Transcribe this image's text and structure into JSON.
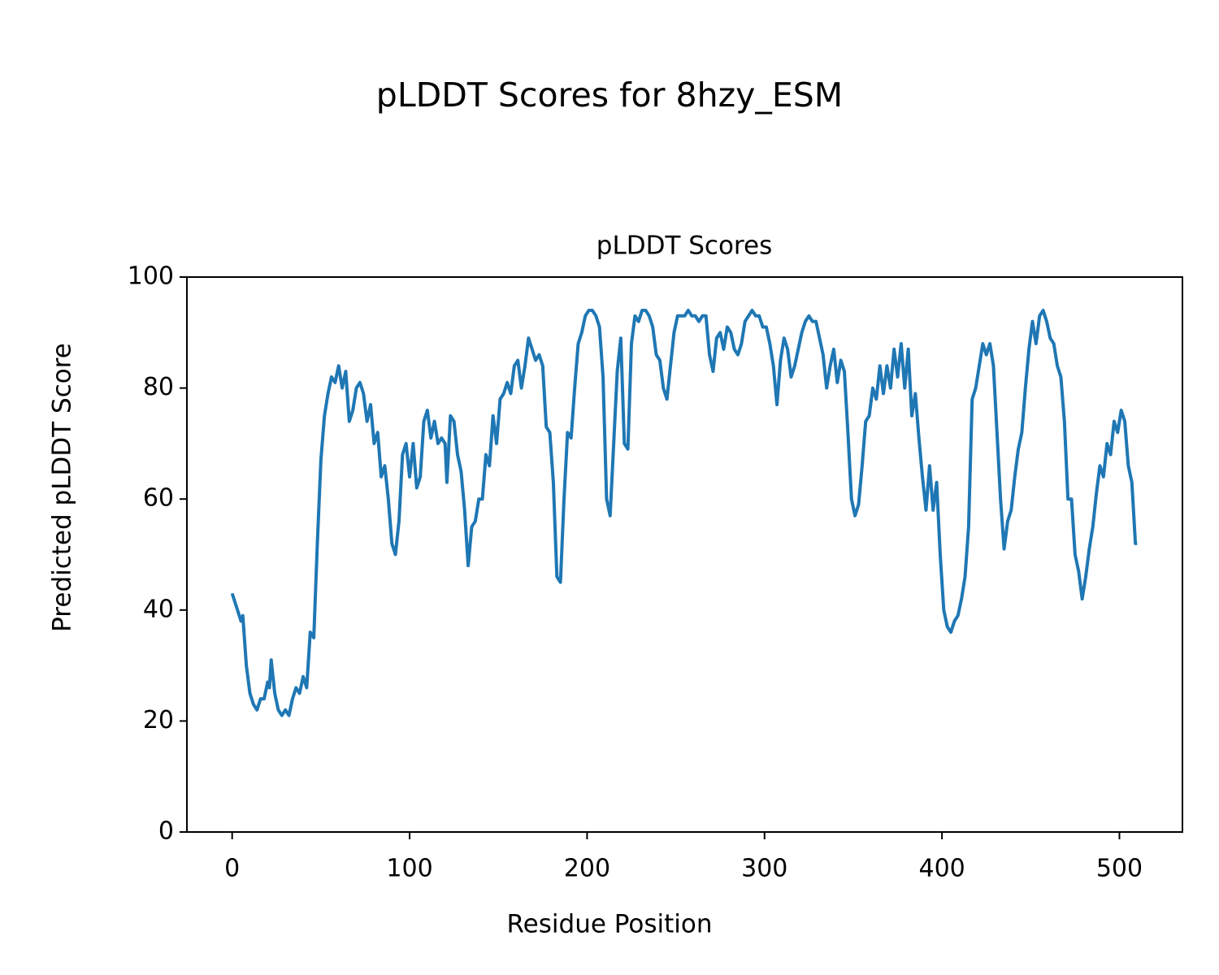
{
  "chart_data": {
    "type": "line",
    "suptitle": "pLDDT Scores for 8hzy_ESM",
    "title": "pLDDT Scores",
    "x_label": "Residue Position",
    "y_label": "Predicted pLDDT Score",
    "xlim": [
      -25.5,
      535.5
    ],
    "xticks": [
      0,
      100,
      200,
      300,
      400,
      500
    ],
    "ylim": [
      0,
      100
    ],
    "yticks": [
      0,
      20,
      40,
      60,
      80,
      100
    ],
    "x": [
      0,
      3,
      5,
      6,
      8,
      10,
      12,
      14,
      16,
      18,
      20,
      21,
      22,
      24,
      26,
      28,
      30,
      32,
      34,
      36,
      38,
      40,
      42,
      44,
      46,
      48,
      50,
      52,
      54,
      56,
      58,
      60,
      62,
      64,
      66,
      68,
      70,
      72,
      74,
      76,
      78,
      80,
      82,
      84,
      86,
      88,
      90,
      92,
      94,
      96,
      98,
      100,
      102,
      104,
      106,
      108,
      110,
      112,
      114,
      116,
      118,
      120,
      121,
      123,
      125,
      127,
      129,
      131,
      133,
      135,
      137,
      139,
      141,
      143,
      145,
      147,
      149,
      151,
      153,
      155,
      157,
      159,
      161,
      163,
      165,
      167,
      169,
      171,
      173,
      175,
      177,
      179,
      181,
      183,
      185,
      187,
      189,
      191,
      193,
      195,
      197,
      199,
      201,
      203,
      205,
      207,
      209,
      211,
      213,
      215,
      217,
      219,
      221,
      223,
      225,
      227,
      229,
      231,
      233,
      235,
      237,
      239,
      241,
      243,
      245,
      247,
      249,
      251,
      253,
      255,
      257,
      259,
      261,
      263,
      265,
      267,
      269,
      271,
      273,
      275,
      277,
      279,
      281,
      283,
      285,
      287,
      289,
      291,
      293,
      295,
      297,
      299,
      301,
      303,
      305,
      307,
      309,
      311,
      313,
      315,
      317,
      319,
      321,
      323,
      325,
      327,
      329,
      331,
      333,
      335,
      337,
      339,
      341,
      343,
      345,
      347,
      349,
      351,
      353,
      355,
      357,
      359,
      361,
      363,
      365,
      367,
      369,
      371,
      373,
      375,
      377,
      379,
      381,
      383,
      385,
      387,
      389,
      391,
      393,
      395,
      397,
      399,
      401,
      403,
      405,
      407,
      409,
      411,
      413,
      415,
      417,
      419,
      421,
      423,
      425,
      427,
      429,
      431,
      433,
      435,
      437,
      439,
      441,
      443,
      445,
      447,
      449,
      451,
      453,
      455,
      457,
      459,
      461,
      463,
      465,
      467,
      469,
      471,
      473,
      475,
      477,
      479,
      481,
      483,
      485,
      487,
      489,
      491,
      493,
      495,
      497,
      499,
      501,
      503,
      505,
      507,
      509,
      510
    ],
    "series": [
      {
        "name": "pLDDT",
        "color": "#1f77b4",
        "values": [
          43,
          40,
          38,
          39,
          30,
          25,
          23,
          22,
          24,
          24,
          27,
          26,
          31,
          25,
          22,
          21,
          22,
          21,
          24,
          26,
          25,
          28,
          26,
          36,
          35,
          52,
          67,
          75,
          79,
          82,
          81,
          84,
          80,
          83,
          74,
          76,
          80,
          81,
          79,
          74,
          77,
          70,
          72,
          64,
          66,
          60,
          52,
          50,
          56,
          68,
          70,
          64,
          70,
          62,
          64,
          74,
          76,
          71,
          74,
          70,
          71,
          70,
          63,
          75,
          74,
          68,
          65,
          58,
          48,
          55,
          56,
          60,
          60,
          68,
          66,
          75,
          70,
          78,
          79,
          81,
          79,
          84,
          85,
          80,
          84,
          89,
          87,
          85,
          86,
          84,
          73,
          72,
          63,
          46,
          45,
          60,
          72,
          71,
          80,
          88,
          90,
          93,
          94,
          94,
          93,
          91,
          82,
          60,
          57,
          70,
          83,
          89,
          70,
          69,
          88,
          93,
          92,
          94,
          94,
          93,
          91,
          86,
          85,
          80,
          78,
          84,
          90,
          93,
          93,
          93,
          94,
          93,
          93,
          92,
          93,
          93,
          86,
          83,
          89,
          90,
          87,
          91,
          90,
          87,
          86,
          88,
          92,
          93,
          94,
          93,
          93,
          91,
          91,
          88,
          84,
          77,
          85,
          89,
          87,
          82,
          84,
          87,
          90,
          92,
          93,
          92,
          92,
          89,
          86,
          80,
          84,
          87,
          81,
          85,
          83,
          72,
          60,
          57,
          59,
          66,
          74,
          75,
          80,
          78,
          84,
          79,
          84,
          80,
          87,
          82,
          88,
          80,
          87,
          75,
          79,
          71,
          64,
          58,
          66,
          58,
          63,
          50,
          40,
          37,
          36,
          38,
          39,
          42,
          46,
          55,
          78,
          80,
          84,
          88,
          86,
          88,
          84,
          72,
          60,
          51,
          56,
          58,
          64,
          69,
          72,
          80,
          87,
          92,
          88,
          93,
          94,
          92,
          89,
          88,
          84,
          82,
          74,
          60,
          60,
          50,
          47,
          42,
          46,
          51,
          55,
          61,
          66,
          64,
          70,
          68,
          74,
          72,
          76,
          74,
          66,
          63,
          52,
          52
        ]
      }
    ]
  }
}
